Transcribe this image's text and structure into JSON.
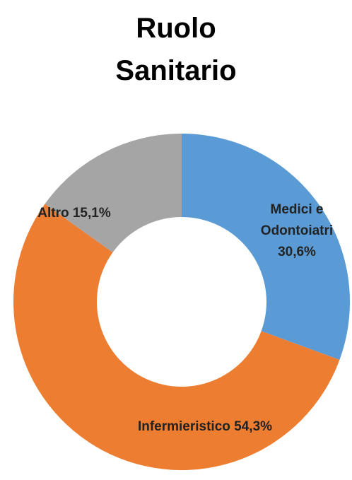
{
  "chart_data": {
    "type": "donut",
    "title": "Ruolo Sanitario",
    "categories": [
      "Medici e Odontoiatri",
      "Infermieristico",
      "Altro"
    ],
    "values": [
      30.6,
      54.3,
      15.1
    ],
    "value_labels": [
      "30,6%",
      "54,3%",
      "15,1%"
    ],
    "colors": [
      "#5b9bd5",
      "#ed7d31",
      "#a5a5a5"
    ]
  }
}
